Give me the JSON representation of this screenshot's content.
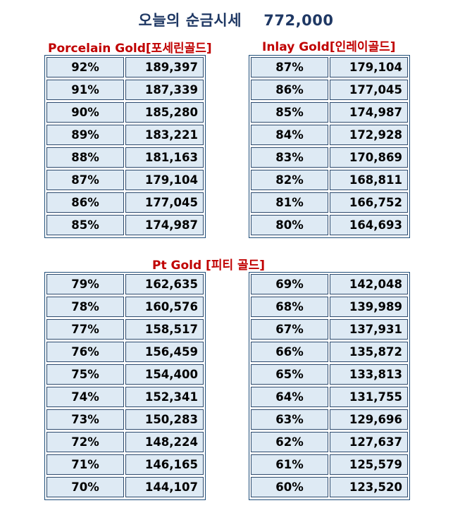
{
  "title": "오늘의 순금시세    772,000",
  "porcelain": {
    "title": "Porcelain Gold[포세린골드]",
    "rows": [
      {
        "pct": "92%",
        "value": "189,397"
      },
      {
        "pct": "91%",
        "value": "187,339"
      },
      {
        "pct": "90%",
        "value": "185,280"
      },
      {
        "pct": "89%",
        "value": "183,221"
      },
      {
        "pct": "88%",
        "value": "181,163"
      },
      {
        "pct": "87%",
        "value": "179,104"
      },
      {
        "pct": "86%",
        "value": "177,045"
      },
      {
        "pct": "85%",
        "value": "174,987"
      }
    ]
  },
  "inlay": {
    "title": "Inlay Gold[인레이골드]",
    "rows": [
      {
        "pct": "87%",
        "value": "179,104"
      },
      {
        "pct": "86%",
        "value": "177,045"
      },
      {
        "pct": "85%",
        "value": "174,987"
      },
      {
        "pct": "84%",
        "value": "172,928"
      },
      {
        "pct": "83%",
        "value": "170,869"
      },
      {
        "pct": "82%",
        "value": "168,811"
      },
      {
        "pct": "81%",
        "value": "166,752"
      },
      {
        "pct": "80%",
        "value": "164,693"
      }
    ]
  },
  "pt": {
    "title": "Pt Gold [피티 골드]",
    "left_rows": [
      {
        "pct": "79%",
        "value": "162,635"
      },
      {
        "pct": "78%",
        "value": "160,576"
      },
      {
        "pct": "77%",
        "value": "158,517"
      },
      {
        "pct": "76%",
        "value": "156,459"
      },
      {
        "pct": "75%",
        "value": "154,400"
      },
      {
        "pct": "74%",
        "value": "152,341"
      },
      {
        "pct": "73%",
        "value": "150,283"
      },
      {
        "pct": "72%",
        "value": "148,224"
      },
      {
        "pct": "71%",
        "value": "146,165"
      },
      {
        "pct": "70%",
        "value": "144,107"
      }
    ],
    "right_rows": [
      {
        "pct": "69%",
        "value": "142,048"
      },
      {
        "pct": "68%",
        "value": "139,989"
      },
      {
        "pct": "67%",
        "value": "137,931"
      },
      {
        "pct": "66%",
        "value": "135,872"
      },
      {
        "pct": "65%",
        "value": "133,813"
      },
      {
        "pct": "64%",
        "value": "131,755"
      },
      {
        "pct": "63%",
        "value": "129,696"
      },
      {
        "pct": "62%",
        "value": "127,637"
      },
      {
        "pct": "61%",
        "value": "125,579"
      },
      {
        "pct": "60%",
        "value": "123,520"
      }
    ]
  }
}
